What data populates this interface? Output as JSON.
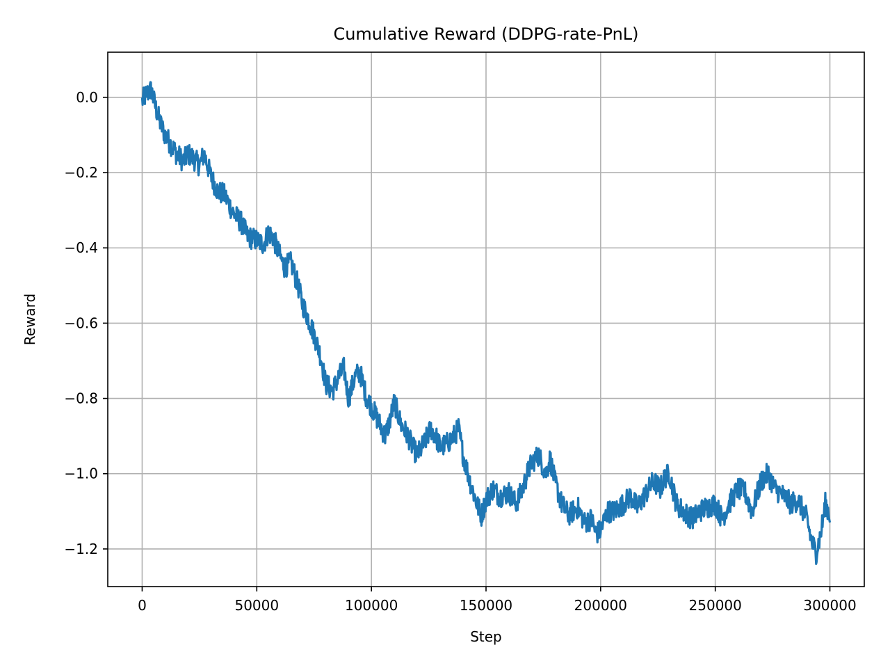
{
  "chart_data": {
    "type": "line",
    "title": "Cumulative Reward (DDPG-rate-PnL)",
    "xlabel": "Step",
    "ylabel": "Reward",
    "xlim": [
      -15000,
      315000
    ],
    "ylim": [
      -1.3,
      0.12
    ],
    "grid": true,
    "x_ticks": [
      0,
      50000,
      100000,
      150000,
      200000,
      250000,
      300000
    ],
    "x_tick_labels": [
      "0",
      "50000",
      "100000",
      "150000",
      "200000",
      "250000",
      "300000"
    ],
    "y_ticks": [
      0.0,
      -0.2,
      -0.4,
      -0.6,
      -0.8,
      -1.0,
      -1.2
    ],
    "y_tick_labels": [
      "0.0",
      "−0.2",
      "−0.4",
      "−0.6",
      "−0.8",
      "−1.0",
      "−1.2"
    ],
    "series": [
      {
        "color": "#1f77b4",
        "noise_band": 0.03,
        "x": [
          0,
          2000,
          4000,
          6000,
          8000,
          10000,
          12000,
          15000,
          18000,
          20000,
          22000,
          25000,
          27000,
          30000,
          33000,
          36000,
          40000,
          43000,
          46000,
          50000,
          53000,
          55000,
          57000,
          60000,
          62000,
          65000,
          68000,
          70000,
          72000,
          75000,
          78000,
          80000,
          83000,
          86000,
          88000,
          90000,
          93000,
          95000,
          98000,
          100000,
          103000,
          106000,
          108000,
          110000,
          113000,
          116000,
          118000,
          120000,
          123000,
          126000,
          128000,
          130000,
          133000,
          136000,
          138000,
          140000,
          143000,
          146000,
          148000,
          150000,
          153000,
          156000,
          160000,
          163000,
          166000,
          168000,
          170000,
          173000,
          176000,
          178000,
          180000,
          183000,
          186000,
          190000,
          193000,
          196000,
          198000,
          200000,
          203000,
          206000,
          210000,
          213000,
          216000,
          220000,
          223000,
          226000,
          228000,
          230000,
          233000,
          236000,
          240000,
          243000,
          246000,
          250000,
          253000,
          256000,
          260000,
          263000,
          266000,
          270000,
          273000,
          276000,
          280000,
          283000,
          286000,
          290000,
          292000,
          294000,
          296000,
          298000,
          300000
        ],
        "y": [
          -0.01,
          0.01,
          0.02,
          -0.03,
          -0.07,
          -0.1,
          -0.12,
          -0.15,
          -0.17,
          -0.15,
          -0.16,
          -0.18,
          -0.15,
          -0.21,
          -0.25,
          -0.26,
          -0.31,
          -0.33,
          -0.37,
          -0.38,
          -0.39,
          -0.36,
          -0.37,
          -0.42,
          -0.45,
          -0.44,
          -0.5,
          -0.55,
          -0.58,
          -0.63,
          -0.69,
          -0.76,
          -0.78,
          -0.74,
          -0.72,
          -0.8,
          -0.74,
          -0.73,
          -0.8,
          -0.82,
          -0.86,
          -0.9,
          -0.86,
          -0.81,
          -0.87,
          -0.9,
          -0.93,
          -0.95,
          -0.92,
          -0.88,
          -0.9,
          -0.93,
          -0.92,
          -0.9,
          -0.88,
          -0.95,
          -1.02,
          -1.08,
          -1.11,
          -1.07,
          -1.04,
          -1.06,
          -1.05,
          -1.08,
          -1.04,
          -1.0,
          -0.97,
          -0.95,
          -1.0,
          -0.96,
          -1.02,
          -1.08,
          -1.11,
          -1.09,
          -1.13,
          -1.12,
          -1.16,
          -1.15,
          -1.1,
          -1.1,
          -1.08,
          -1.06,
          -1.09,
          -1.05,
          -1.02,
          -1.04,
          -1.01,
          -1.0,
          -1.08,
          -1.1,
          -1.12,
          -1.1,
          -1.09,
          -1.08,
          -1.12,
          -1.08,
          -1.04,
          -1.05,
          -1.1,
          -1.02,
          -1.0,
          -1.04,
          -1.06,
          -1.08,
          -1.07,
          -1.12,
          -1.18,
          -1.21,
          -1.16,
          -1.08,
          -1.11
        ]
      }
    ]
  }
}
